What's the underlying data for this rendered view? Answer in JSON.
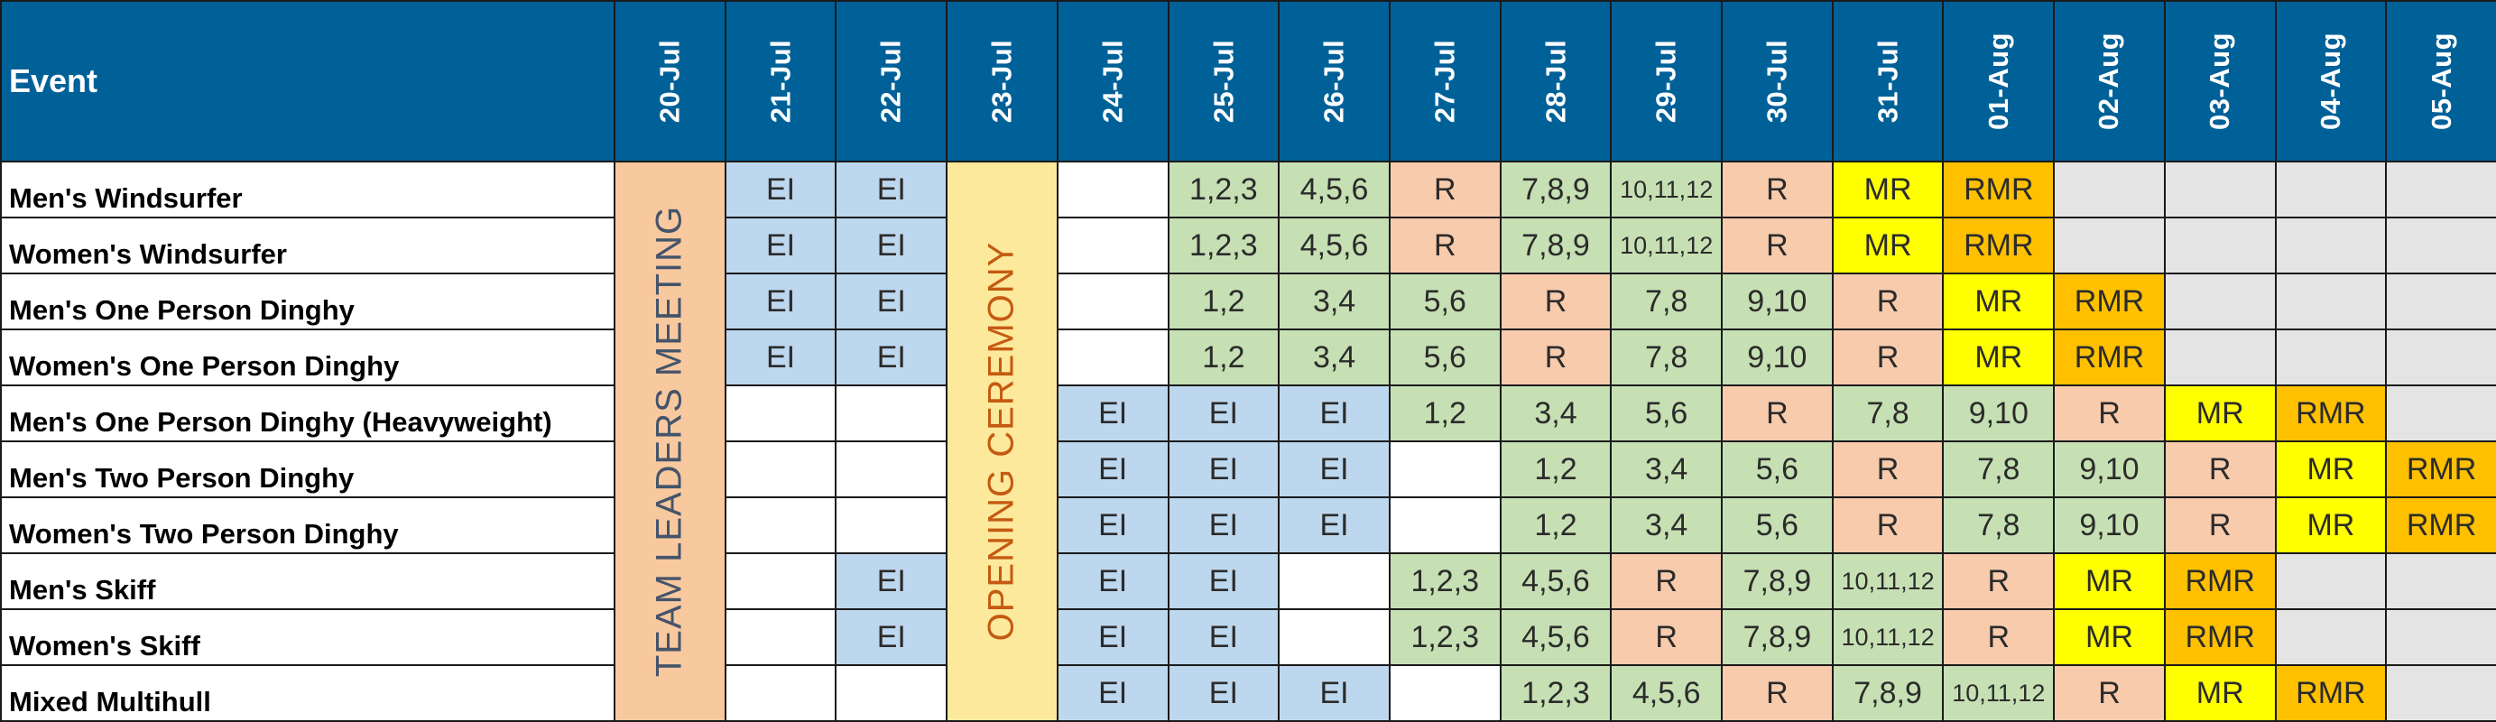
{
  "header": {
    "event_label": "Event",
    "dates": [
      "20-Jul",
      "21-Jul",
      "22-Jul",
      "23-Jul",
      "24-Jul",
      "25-Jul",
      "26-Jul",
      "27-Jul",
      "28-Jul",
      "29-Jul",
      "30-Jul",
      "31-Jul",
      "01-Aug",
      "02-Aug",
      "03-Aug",
      "04-Aug",
      "05-Aug"
    ]
  },
  "banners": {
    "team_leaders_meeting": "TEAM LEADERS MEETING",
    "opening_ceremony": "OPENING CEREMONY"
  },
  "legend_colors": {
    "EI": "#bdd7ee",
    "R": "#f8cbad",
    "race": "#c6e0b4",
    "MR": "#ffff00",
    "RMR": "#ffc000",
    "none": "#e4e4e4"
  },
  "rows": [
    {
      "event": "Men's Windsurfer",
      "cells": [
        "EI",
        "EI",
        "",
        "1,2,3",
        "4,5,6",
        "R",
        "7,8,9",
        "10,11,12",
        "R",
        "MR",
        "RMR",
        "~",
        "~",
        "~",
        "~"
      ]
    },
    {
      "event": "Women's Windsurfer",
      "cells": [
        "EI",
        "EI",
        "",
        "1,2,3",
        "4,5,6",
        "R",
        "7,8,9",
        "10,11,12",
        "R",
        "MR",
        "RMR",
        "~",
        "~",
        "~",
        "~"
      ]
    },
    {
      "event": "Men's One Person Dinghy",
      "cells": [
        "EI",
        "EI",
        "",
        "1,2",
        "3,4",
        "5,6",
        "R",
        "7,8",
        "9,10",
        "R",
        "MR",
        "RMR",
        "~",
        "~",
        "~"
      ]
    },
    {
      "event": "Women's One Person Dinghy",
      "cells": [
        "EI",
        "EI",
        "",
        "1,2",
        "3,4",
        "5,6",
        "R",
        "7,8",
        "9,10",
        "R",
        "MR",
        "RMR",
        "~",
        "~",
        "~"
      ]
    },
    {
      "event": "Men's One Person Dinghy (Heavyweight)",
      "cells": [
        "",
        "",
        "EI",
        "EI",
        "EI",
        "1,2",
        "3,4",
        "5,6",
        "R",
        "7,8",
        "9,10",
        "R",
        "MR",
        "RMR",
        "~"
      ]
    },
    {
      "event": "Men's Two Person Dinghy",
      "cells": [
        "",
        "",
        "EI",
        "EI",
        "EI",
        "",
        "1,2",
        "3,4",
        "5,6",
        "R",
        "7,8",
        "9,10",
        "R",
        "MR",
        "RMR"
      ]
    },
    {
      "event": "Women's Two Person Dinghy",
      "cells": [
        "",
        "",
        "EI",
        "EI",
        "EI",
        "",
        "1,2",
        "3,4",
        "5,6",
        "R",
        "7,8",
        "9,10",
        "R",
        "MR",
        "RMR"
      ]
    },
    {
      "event": "Men's Skiff",
      "cells": [
        "",
        "EI",
        "EI",
        "EI",
        "",
        "1,2,3",
        "4,5,6",
        "R",
        "7,8,9",
        "10,11,12",
        "R",
        "MR",
        "RMR",
        "~",
        "~"
      ]
    },
    {
      "event": "Women's Skiff",
      "cells": [
        "",
        "EI",
        "EI",
        "EI",
        "",
        "1,2,3",
        "4,5,6",
        "R",
        "7,8,9",
        "10,11,12",
        "R",
        "MR",
        "RMR",
        "~",
        "~"
      ]
    },
    {
      "event": "Mixed Multihull",
      "cells": [
        "",
        "",
        "EI",
        "EI",
        "EI",
        "",
        "1,2,3",
        "4,5,6",
        "R",
        "7,8,9",
        "10,11,12",
        "R",
        "MR",
        "RMR",
        "~"
      ]
    }
  ]
}
